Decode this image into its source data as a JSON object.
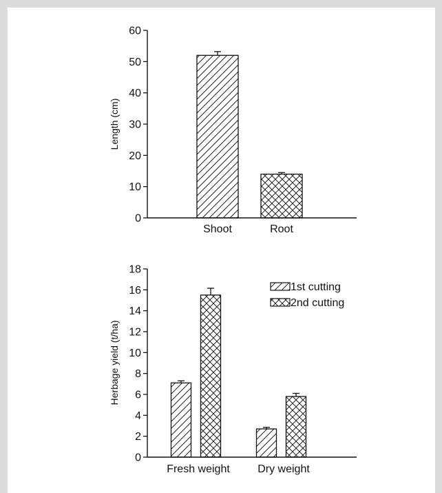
{
  "chart_data": [
    {
      "type": "bar",
      "categories": [
        "Shoot",
        "Root"
      ],
      "series": [
        {
          "values": [
            52,
            14
          ],
          "errors": [
            1.2,
            0.5
          ],
          "patterns": [
            "diagonal-hatch",
            "cross-hatch"
          ]
        }
      ],
      "xlabel": "",
      "ylabel": "Length (cm)",
      "ylim": [
        0,
        60
      ],
      "yticks": [
        0,
        10,
        20,
        30,
        40,
        50,
        60
      ],
      "grid": false,
      "legend": "none"
    },
    {
      "type": "bar",
      "categories": [
        "Fresh weight",
        "Dry weight"
      ],
      "series": [
        {
          "name": "1st cutting",
          "values": [
            7.1,
            2.7
          ],
          "errors": [
            0.2,
            0.15
          ],
          "pattern": "diagonal-hatch"
        },
        {
          "name": "2nd cutting",
          "values": [
            15.5,
            5.8
          ],
          "errors": [
            0.65,
            0.3
          ],
          "pattern": "cross-hatch"
        }
      ],
      "xlabel": "",
      "ylabel": "Herbage yield (t/ha)",
      "ylim": [
        0,
        18
      ],
      "yticks": [
        0,
        2,
        4,
        6,
        8,
        10,
        12,
        14,
        16,
        18
      ],
      "grid": false,
      "legend": "top-right"
    }
  ]
}
